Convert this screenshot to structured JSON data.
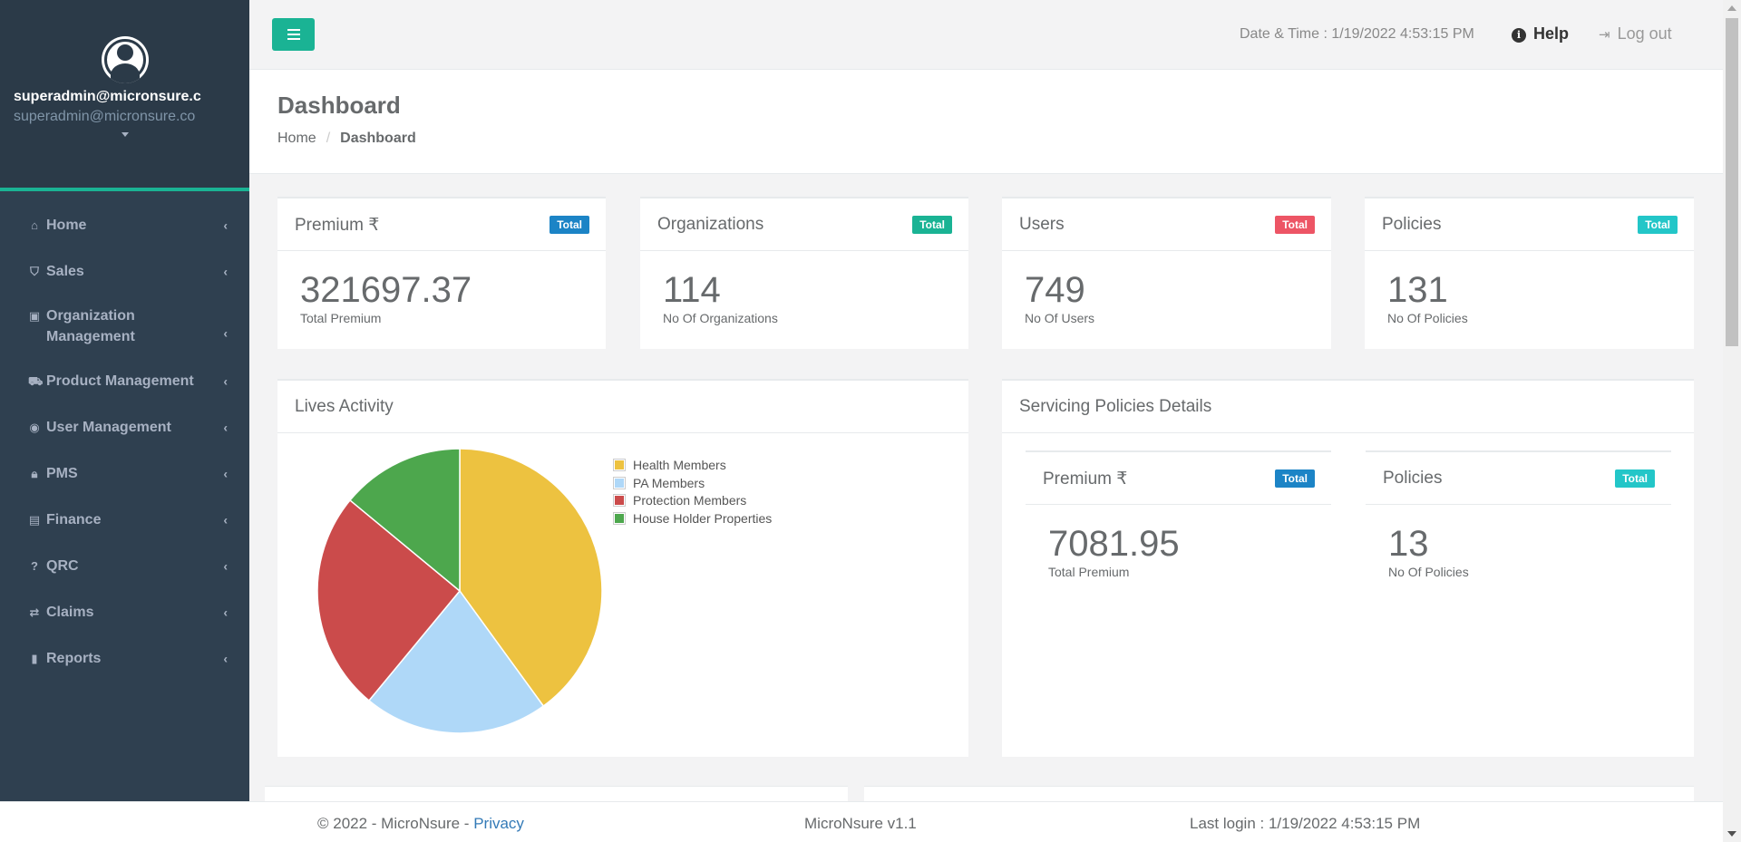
{
  "profile": {
    "name": "superadmin@micronsure.c",
    "email": "superadmin@micronsure.co"
  },
  "sidebar": {
    "items": [
      {
        "label": "Home",
        "icon": "home-icon",
        "glyph": "⌂"
      },
      {
        "label": "Sales",
        "icon": "shield-icon",
        "glyph": "⛉"
      },
      {
        "label": "Organization Management",
        "icon": "id-card-icon",
        "glyph": "▣"
      },
      {
        "label": "Product Management",
        "icon": "cart-icon",
        "glyph": "⛟"
      },
      {
        "label": "User Management",
        "icon": "user-circle-icon",
        "glyph": "◉"
      },
      {
        "label": "PMS",
        "icon": "lock-icon",
        "glyph": "🔒︎"
      },
      {
        "label": "Finance",
        "icon": "money-icon",
        "glyph": "▤"
      },
      {
        "label": "QRC",
        "icon": "question-icon",
        "glyph": "?"
      },
      {
        "label": "Claims",
        "icon": "exchange-icon",
        "glyph": "⇄"
      },
      {
        "label": "Reports",
        "icon": "file-icon",
        "glyph": "▮"
      }
    ]
  },
  "topbar": {
    "datetime": "Date & Time : 1/19/2022 4:53:15 PM",
    "help": "Help",
    "logout": "Log out"
  },
  "page": {
    "title": "Dashboard",
    "breadcrumb_home": "Home",
    "breadcrumb_current": "Dashboard"
  },
  "widgets": {
    "premium": {
      "title": "Premium ₹",
      "badge": "Total",
      "value": "321697.37",
      "caption": "Total Premium"
    },
    "organizations": {
      "title": "Organizations",
      "badge": "Total",
      "value": "114",
      "caption": "No Of Organizations"
    },
    "users": {
      "title": "Users",
      "badge": "Total",
      "value": "749",
      "caption": "No Of Users"
    },
    "policies": {
      "title": "Policies",
      "badge": "Total",
      "value": "131",
      "caption": "No Of Policies"
    }
  },
  "lives_activity": {
    "title": "Lives Activity"
  },
  "servicing": {
    "title": "Servicing Policies Details",
    "premium": {
      "title": "Premium ₹",
      "badge": "Total",
      "value": "7081.95",
      "caption": "Total Premium"
    },
    "policies": {
      "title": "Policies",
      "badge": "Total",
      "value": "13",
      "caption": "No Of Policies"
    }
  },
  "footer": {
    "copyright": "© 2022 - MicroNsure - ",
    "privacy": "Privacy",
    "version": "MicroNsure v1.1",
    "last_login": "Last login : 1/19/2022 4:53:15 PM"
  },
  "colors": {
    "accent": "#1ab394",
    "badge_blue": "#1c84c6",
    "badge_green": "#1ab394",
    "badge_red": "#ed5565",
    "badge_cyan": "#23c6c8"
  },
  "chart_data": {
    "type": "pie",
    "title": "Lives Activity",
    "slices": [
      {
        "label": "Health Members",
        "value": 40,
        "color": "#edc240"
      },
      {
        "label": "PA Members",
        "value": 21,
        "color": "#afd8f8"
      },
      {
        "label": "Protection Members",
        "value": 25,
        "color": "#cb4b4b"
      },
      {
        "label": "House Holder Properties",
        "value": 14,
        "color": "#4da74d"
      }
    ],
    "legend": "right"
  }
}
